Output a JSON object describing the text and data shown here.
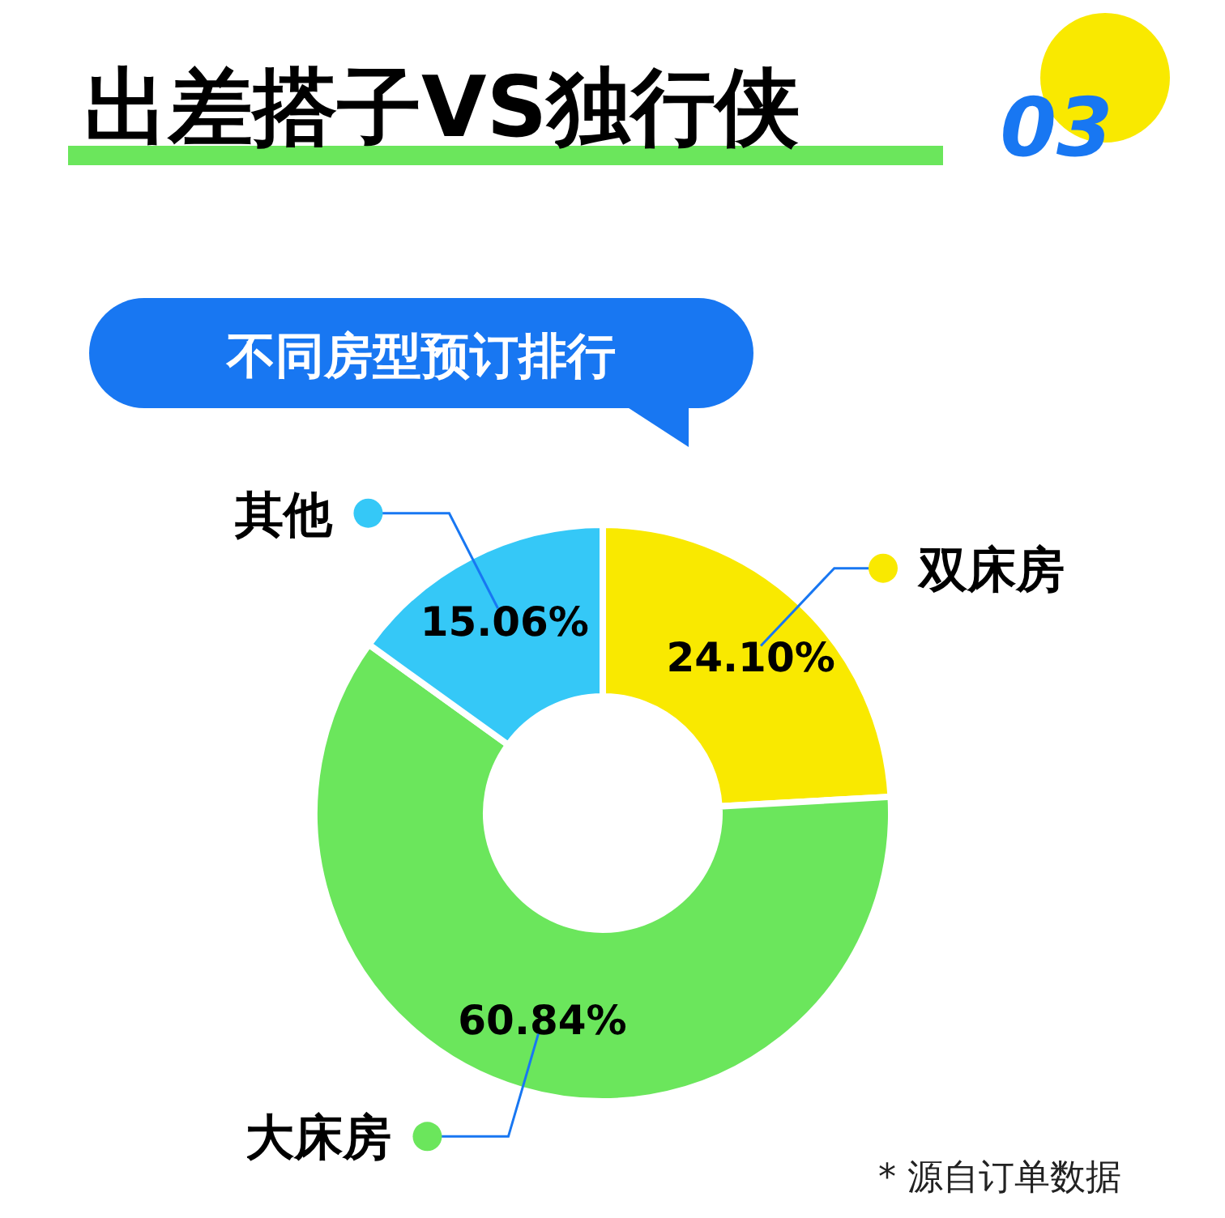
{
  "chart_data": {
    "type": "donut",
    "title": "出差搭子VS独行侠",
    "subtitle": "不同房型预订排行",
    "categories": [
      "双床房",
      "大床房",
      "其他"
    ],
    "values": [
      24.1,
      60.84,
      15.06
    ],
    "colors": [
      "#f9e900",
      "#6be65c",
      "#35c8f7"
    ],
    "value_labels": [
      "24.10%",
      "60.84%",
      "15.06%"
    ],
    "legend": "left",
    "annotations": [
      "03",
      "* 源自订单数据"
    ]
  }
}
